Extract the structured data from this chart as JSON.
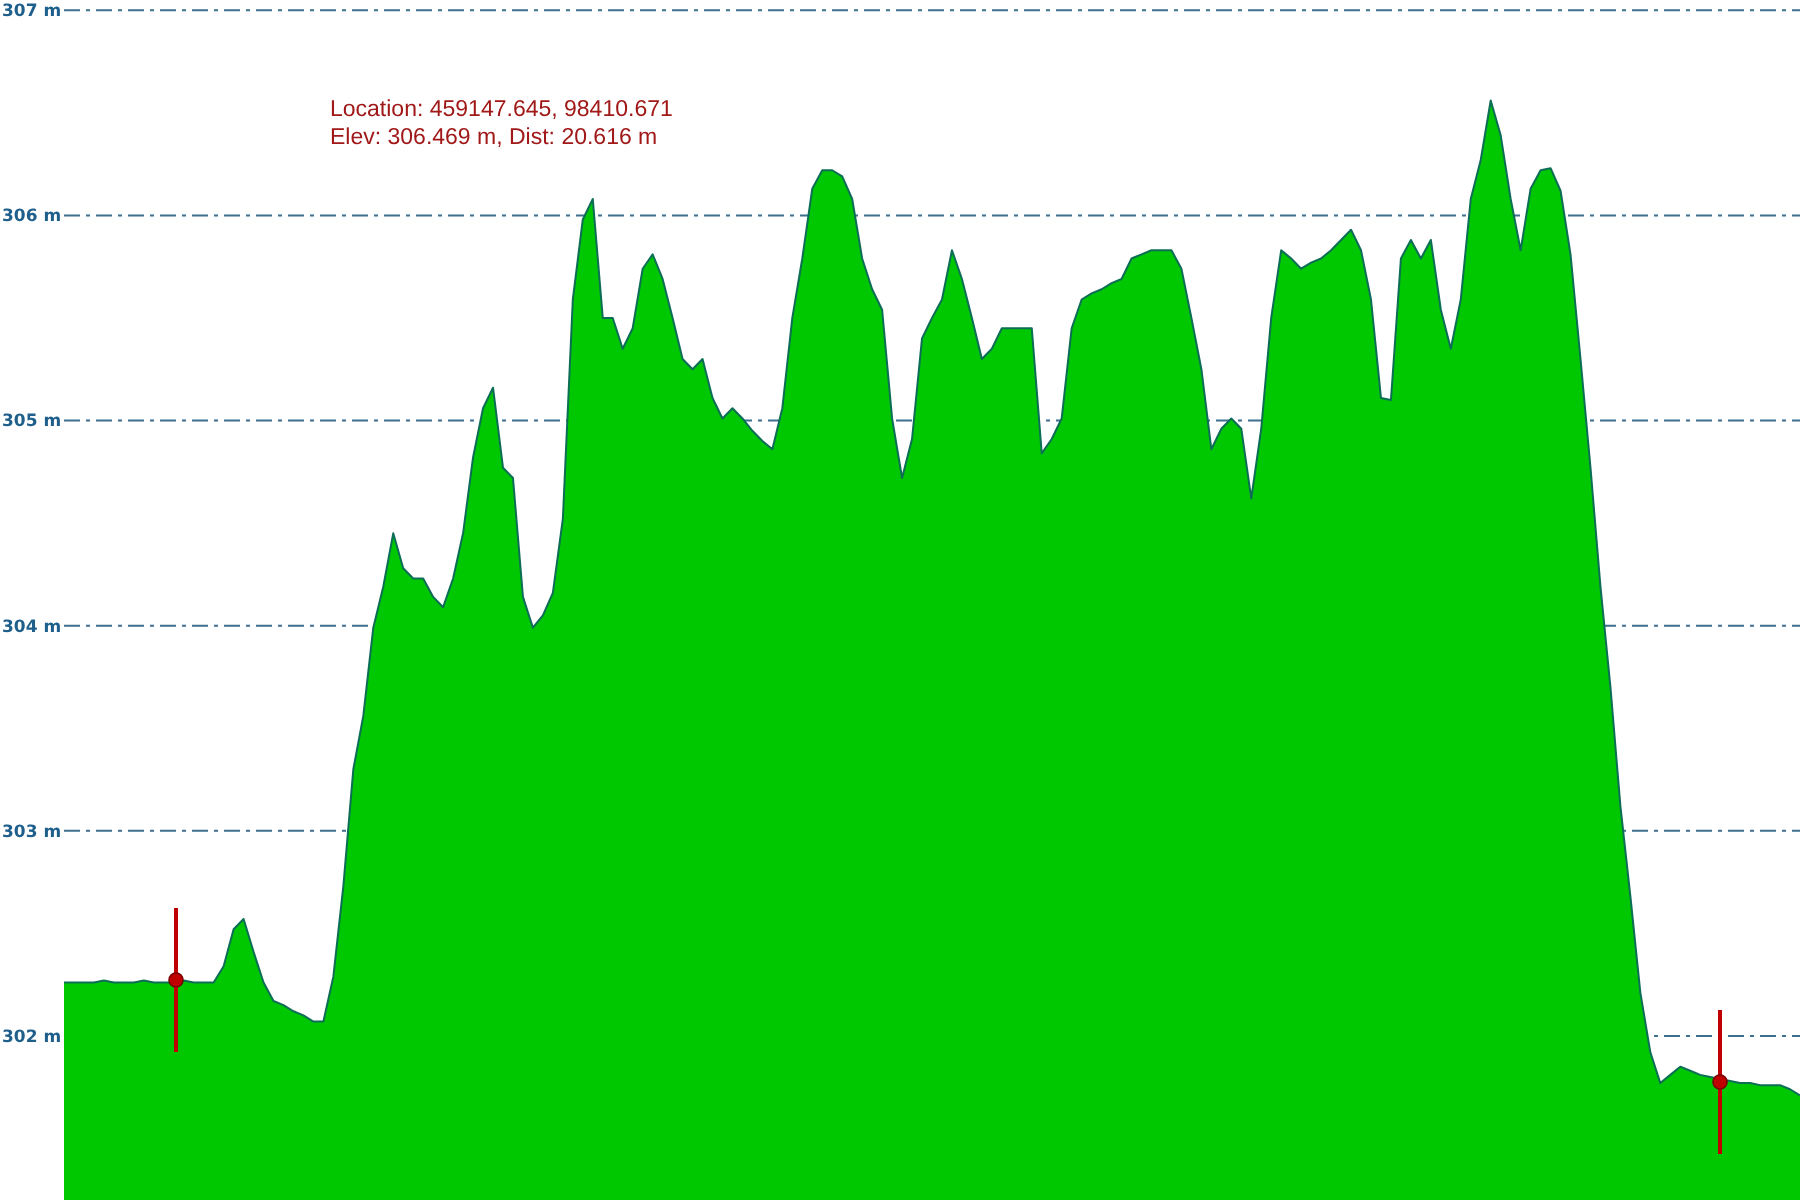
{
  "chart_data": {
    "type": "area",
    "tick_labels": "y",
    "grid": "y",
    "ylim": [
      301.2,
      307.05
    ],
    "yticks": [
      {
        "value": 302,
        "label": "302 m"
      },
      {
        "value": 303,
        "label": "303 m"
      },
      {
        "value": 304,
        "label": "304 m"
      },
      {
        "value": 305,
        "label": "305 m"
      },
      {
        "value": 306,
        "label": "306 m"
      },
      {
        "value": 307,
        "label": "307 m"
      }
    ],
    "annotations": [
      "Location: 459147.645, 98410.671",
      "Elev: 306.469 m, Dist: 20.616 m"
    ],
    "categories": [
      null,
      null,
      null,
      null,
      null,
      null,
      null,
      null,
      null,
      null,
      null,
      null,
      null,
      null,
      null,
      null,
      null,
      null,
      null,
      null,
      null,
      null,
      null,
      null,
      null,
      null,
      null,
      null,
      null,
      null,
      null,
      null,
      null,
      null,
      null,
      null,
      null,
      null,
      null,
      null,
      null,
      null,
      null,
      null,
      null,
      null,
      null,
      null,
      null,
      null,
      null,
      null,
      null,
      null,
      null,
      null,
      null,
      null,
      null,
      null,
      null,
      null,
      null,
      null,
      null,
      null,
      null,
      null,
      null,
      null,
      null,
      null,
      null,
      null,
      null,
      null,
      null,
      null,
      null,
      null,
      null,
      null,
      null,
      null,
      null,
      null,
      null,
      null,
      null,
      null,
      null,
      null,
      null,
      null,
      null,
      null,
      null,
      null,
      null,
      null,
      null,
      null,
      null,
      null,
      null,
      null,
      null,
      null,
      null,
      null,
      null,
      null,
      null,
      null,
      null,
      null,
      null,
      null,
      null,
      null,
      null,
      null,
      null,
      null,
      null,
      null,
      null,
      null,
      null,
      null,
      null,
      null,
      null,
      null,
      null,
      null,
      null,
      null,
      null,
      null,
      null,
      null,
      null,
      null,
      null,
      null,
      null,
      null,
      null,
      null,
      null,
      null,
      null,
      null,
      null,
      null,
      null,
      null,
      null,
      null,
      null,
      null,
      null,
      null,
      null,
      null,
      null,
      null,
      null,
      null,
      null,
      null,
      null,
      null,
      null
    ],
    "series": [
      {
        "color": "#00c800",
        "values": [
          302.26,
          302.26,
          302.26,
          302.26,
          302.27,
          302.26,
          302.26,
          302.26,
          302.27,
          302.26,
          302.26,
          302.26,
          302.27,
          302.26,
          302.26,
          302.26,
          302.34,
          302.52,
          302.57,
          302.41,
          302.26,
          302.17,
          302.15,
          302.12,
          302.1,
          302.07,
          302.07,
          302.29,
          302.73,
          303.3,
          303.56,
          303.99,
          304.19,
          304.45,
          304.28,
          304.23,
          304.23,
          304.14,
          304.09,
          304.23,
          304.45,
          304.82,
          305.06,
          305.16,
          304.77,
          304.72,
          304.14,
          303.99,
          304.05,
          304.16,
          304.52,
          305.59,
          305.98,
          306.08,
          305.5,
          305.5,
          305.35,
          305.45,
          305.74,
          305.81,
          305.69,
          305.5,
          305.3,
          305.25,
          305.3,
          305.11,
          305.01,
          305.06,
          305.01,
          304.95,
          304.9,
          304.86,
          305.06,
          305.5,
          305.79,
          306.13,
          306.22,
          306.22,
          306.19,
          306.08,
          305.79,
          305.64,
          305.54,
          305.01,
          304.72,
          304.91,
          305.4,
          305.5,
          305.59,
          305.83,
          305.69,
          305.5,
          305.3,
          305.35,
          305.45,
          305.45,
          305.45,
          305.45,
          304.84,
          304.91,
          305.01,
          305.45,
          305.59,
          305.62,
          305.64,
          305.67,
          305.69,
          305.79,
          305.81,
          305.83,
          305.83,
          305.83,
          305.74,
          305.5,
          305.25,
          304.86,
          304.96,
          305.01,
          304.96,
          304.62,
          304.96,
          305.5,
          305.83,
          305.79,
          305.74,
          305.77,
          305.79,
          305.83,
          305.88,
          305.93,
          305.83,
          305.59,
          305.11,
          305.1,
          305.79,
          305.88,
          305.79,
          305.88,
          305.54,
          305.35,
          305.59,
          306.08,
          306.27,
          306.56,
          306.39,
          306.08,
          305.83,
          306.13,
          306.22,
          306.23,
          306.12,
          305.81,
          305.3,
          304.77,
          304.19,
          303.7,
          303.12,
          302.68,
          302.21,
          301.92,
          301.77,
          301.81,
          301.85,
          301.83,
          301.81,
          301.8,
          301.79,
          301.78,
          301.77,
          301.77,
          301.76,
          301.76,
          301.76,
          301.74,
          301.71
        ]
      }
    ]
  }
}
